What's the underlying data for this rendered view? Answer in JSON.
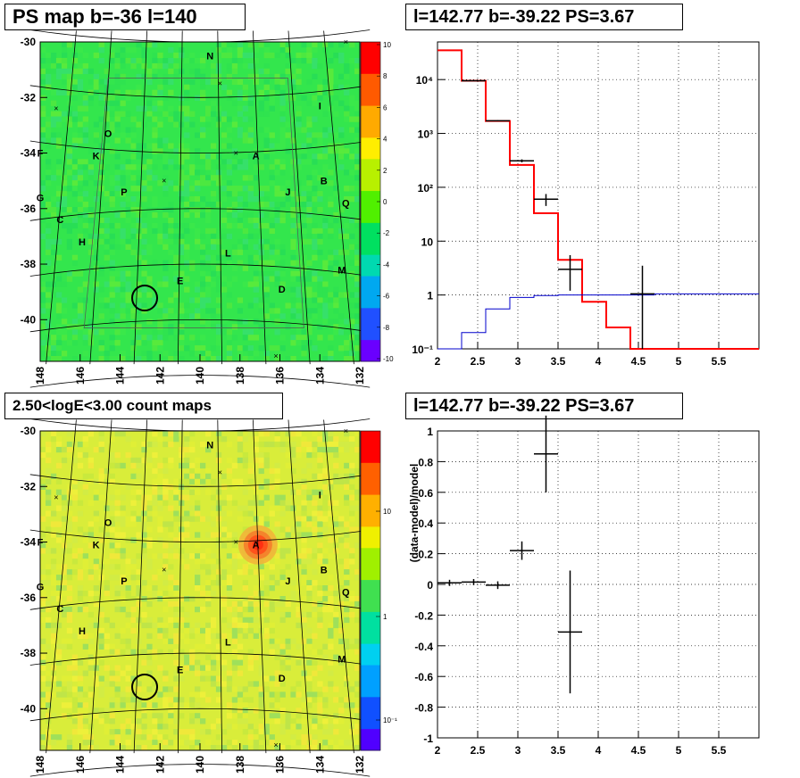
{
  "panels": {
    "tl_title": "PS map b=-36 l=140",
    "tr_title": "l=142.77 b=-39.22 PS=3.67",
    "bl_title": "2.50<logE<3.00 count maps",
    "br_title": "l=142.77 b=-39.22 PS=3.67",
    "br_ylabel": "(data-model)/model"
  },
  "colors": {
    "map_tl_base": "#33e64d",
    "map_bl_base": "#d9ed3a",
    "hot_spot": "#ff2a10",
    "model_line": "#ff0000",
    "bkg_line": "#0000cc",
    "data": "#000000"
  },
  "map_axes": {
    "x_ticks": [
      "148",
      "146",
      "144",
      "142",
      "140",
      "138",
      "136",
      "134",
      "132"
    ],
    "y_ticks": [
      "-30",
      "-32",
      "-34",
      "-36",
      "-38",
      "-40"
    ]
  },
  "map_labels": [
    {
      "t": "N",
      "l": 139.5,
      "b": -30.5
    },
    {
      "t": "I",
      "l": 134.0,
      "b": -32.3
    },
    {
      "t": "O",
      "l": 144.6,
      "b": -33.3
    },
    {
      "t": "F",
      "l": 148.0,
      "b": -34.0
    },
    {
      "t": "K",
      "l": 145.2,
      "b": -34.1
    },
    {
      "t": "A",
      "l": 137.2,
      "b": -34.1
    },
    {
      "t": "B",
      "l": 133.8,
      "b": -35.0
    },
    {
      "t": "G",
      "l": 148.0,
      "b": -35.6
    },
    {
      "t": "P",
      "l": 143.8,
      "b": -35.4
    },
    {
      "t": "J",
      "l": 135.6,
      "b": -35.4
    },
    {
      "t": "Q",
      "l": 132.7,
      "b": -35.8
    },
    {
      "t": "C",
      "l": 147.0,
      "b": -36.4
    },
    {
      "t": "H",
      "l": 145.9,
      "b": -37.2
    },
    {
      "t": "L",
      "l": 138.6,
      "b": -37.6
    },
    {
      "t": "M",
      "l": 132.9,
      "b": -38.2
    },
    {
      "t": "E",
      "l": 141.0,
      "b": -38.6
    },
    {
      "t": "D",
      "l": 135.9,
      "b": -38.9
    }
  ],
  "map_crosses": [
    {
      "l": 132.7,
      "b": -30.0
    },
    {
      "l": 139.0,
      "b": -31.5
    },
    {
      "l": 147.2,
      "b": -32.4
    },
    {
      "l": 138.2,
      "b": -34.0
    },
    {
      "l": 141.8,
      "b": -35.0
    },
    {
      "l": 136.2,
      "b": -41.3
    }
  ],
  "circle": {
    "l": 142.77,
    "b": -39.22
  },
  "colorbar_tl": [
    "10",
    "8",
    "6",
    "4",
    "2",
    "0",
    "-2",
    "-4",
    "-6",
    "-8",
    "-10"
  ],
  "colorbar_bl": [
    "10",
    "1",
    "10⁻¹"
  ],
  "chart_data": [
    {
      "type": "line",
      "xlim": [
        2,
        6
      ],
      "ylim": [
        0.1,
        50000
      ],
      "yscale": "log",
      "x_ticks": [
        "2",
        "2.5",
        "3",
        "3.5",
        "4",
        "4.5",
        "5",
        "5.5"
      ],
      "y_ticks": [
        "10⁻¹",
        "1",
        "10",
        "10²",
        "10³",
        "10⁴"
      ],
      "grid": true,
      "series": [
        {
          "edges": [
            2.0,
            2.3,
            2.6,
            2.9,
            3.2,
            3.5,
            3.8,
            4.1,
            4.4,
            4.7,
            6.0
          ],
          "values": [
            35000,
            9500,
            1700,
            260,
            33,
            4.5,
            0.75,
            0.25,
            0.1,
            0.1
          ]
        },
        {
          "edges": [
            2.0,
            2.3,
            2.6,
            2.9,
            3.2,
            3.5,
            3.8,
            4.1,
            4.4,
            4.7,
            6.0
          ],
          "values": [
            0.1,
            0.2,
            0.55,
            0.9,
            0.98,
            1,
            1,
            1,
            1,
            1.05
          ]
        }
      ],
      "data_points": [
        {
          "x": 2.45,
          "xerr": 0.15,
          "y": 9500,
          "lo": 9400,
          "hi": 9600
        },
        {
          "x": 2.75,
          "xerr": 0.15,
          "y": 1720,
          "lo": 1680,
          "hi": 1760
        },
        {
          "x": 3.05,
          "xerr": 0.15,
          "y": 310,
          "lo": 290,
          "hi": 330
        },
        {
          "x": 3.35,
          "xerr": 0.15,
          "y": 60,
          "lo": 45,
          "hi": 75
        },
        {
          "x": 3.65,
          "xerr": 0.15,
          "y": 3.0,
          "lo": 1.2,
          "hi": 5.5
        },
        {
          "x": 4.55,
          "xerr": 0.15,
          "y": 1.05,
          "lo": 0.1,
          "hi": 3.5
        }
      ]
    },
    {
      "type": "scatter",
      "xlim": [
        2,
        6
      ],
      "ylim": [
        -1,
        1
      ],
      "x_ticks": [
        "2",
        "2.5",
        "3",
        "3.5",
        "4",
        "4.5",
        "5",
        "5.5"
      ],
      "y_ticks": [
        "-1",
        "-0.8",
        "-0.6",
        "-0.4",
        "-0.2",
        "0",
        "0.2",
        "0.4",
        "0.6",
        "0.8",
        "1"
      ],
      "ylabel": "(data-model)/model",
      "grid": true,
      "data_points": [
        {
          "x": 2.15,
          "xerr": 0.15,
          "y": 0.01,
          "err": 0.02
        },
        {
          "x": 2.45,
          "xerr": 0.15,
          "y": 0.015,
          "err": 0.02
        },
        {
          "x": 2.75,
          "xerr": 0.15,
          "y": -0.005,
          "err": 0.025
        },
        {
          "x": 3.05,
          "xerr": 0.15,
          "y": 0.22,
          "err": 0.06
        },
        {
          "x": 3.35,
          "xerr": 0.15,
          "y": 0.85,
          "err": 0.25
        },
        {
          "x": 3.65,
          "xerr": 0.15,
          "y": -0.31,
          "err": 0.4
        }
      ]
    }
  ]
}
